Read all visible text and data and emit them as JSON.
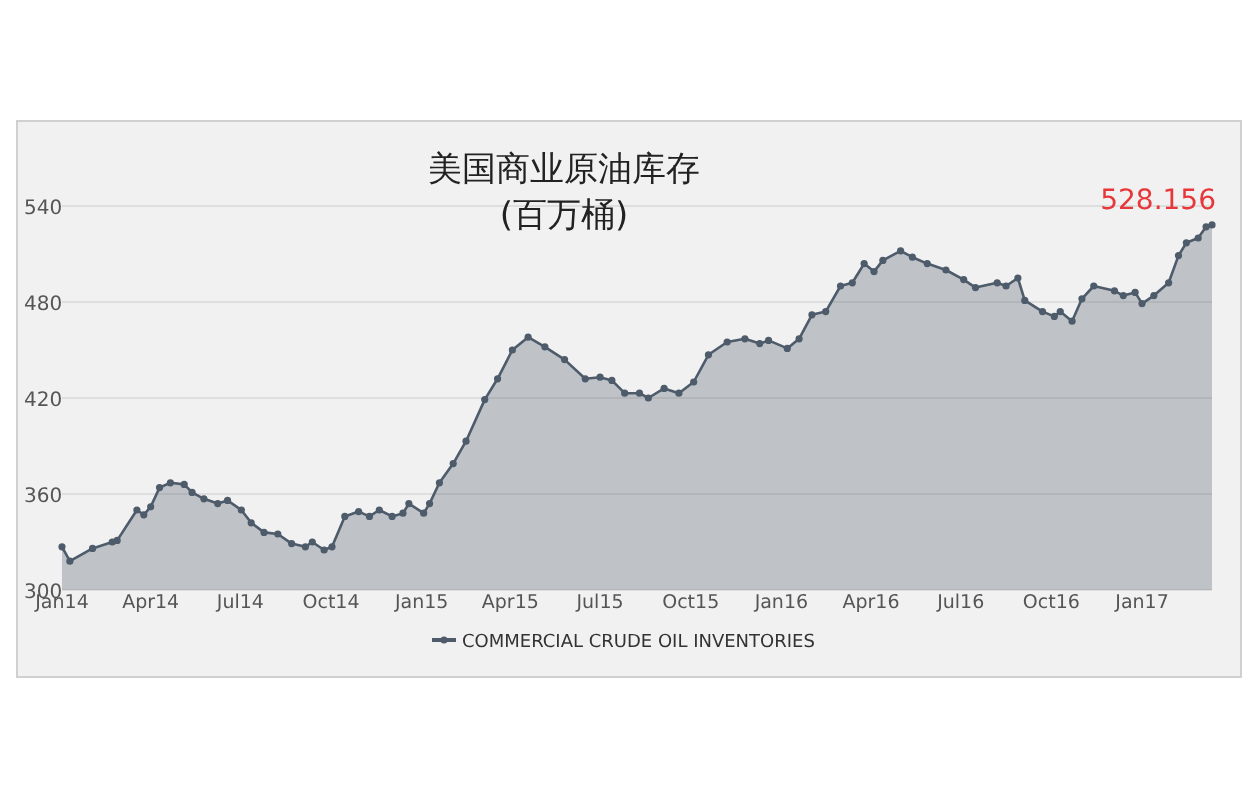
{
  "chart_data": {
    "type": "area",
    "title": "美国商业原油库存",
    "subtitle": "(百万桶)",
    "x": [
      "2014-01-01",
      "2014-01-09",
      "2014-02-01",
      "2014-02-21",
      "2014-02-26",
      "2014-03-18",
      "2014-03-25",
      "2014-04-01",
      "2014-04-10",
      "2014-04-21",
      "2014-05-05",
      "2014-05-13",
      "2014-05-25",
      "2014-06-08",
      "2014-06-18",
      "2014-07-02",
      "2014-07-12",
      "2014-07-25",
      "2014-08-08",
      "2014-08-22",
      "2014-09-05",
      "2014-09-12",
      "2014-09-24",
      "2014-10-02",
      "2014-10-15",
      "2014-10-29",
      "2014-11-09",
      "2014-11-19",
      "2014-12-02",
      "2014-12-13",
      "2014-12-19",
      "2015-01-03",
      "2015-01-09",
      "2015-01-19",
      "2015-02-02",
      "2015-02-15",
      "2015-03-06",
      "2015-03-19",
      "2015-04-03",
      "2015-04-19",
      "2015-05-06",
      "2015-05-26",
      "2015-06-16",
      "2015-07-01",
      "2015-07-13",
      "2015-07-26",
      "2015-08-10",
      "2015-08-19",
      "2015-09-04",
      "2015-09-19",
      "2015-10-04",
      "2015-10-19",
      "2015-11-07",
      "2015-11-25",
      "2015-12-10",
      "2015-12-19",
      "2016-01-07",
      "2016-01-19",
      "2016-02-01",
      "2016-02-15",
      "2016-03-01",
      "2016-03-13",
      "2016-03-25",
      "2016-04-04",
      "2016-04-13",
      "2016-05-01",
      "2016-05-13",
      "2016-05-28",
      "2016-06-16",
      "2016-07-04",
      "2016-07-16",
      "2016-08-07",
      "2016-08-16",
      "2016-08-28",
      "2016-09-04",
      "2016-09-22",
      "2016-10-04",
      "2016-10-10",
      "2016-10-22",
      "2016-11-01",
      "2016-11-13",
      "2016-12-04",
      "2016-12-13",
      "2016-12-25",
      "2017-01-01",
      "2017-01-13",
      "2017-01-28",
      "2017-02-07",
      "2017-02-15",
      "2017-02-27",
      "2017-03-07",
      "2017-03-13"
    ],
    "series": [
      {
        "name": "COMMERCIAL CRUDE OIL INVENTORIES",
        "color": "#4d5b6a",
        "values": [
          327,
          318,
          326,
          330,
          331,
          350,
          347,
          352,
          364,
          367,
          366,
          361,
          357,
          354,
          356,
          350,
          342,
          336,
          335,
          329,
          327,
          330,
          325,
          327,
          346,
          349,
          346,
          350,
          346,
          348,
          354,
          348,
          354,
          367,
          379,
          393,
          419,
          432,
          450,
          458,
          452,
          444,
          432,
          433,
          431,
          423,
          423,
          420,
          426,
          423,
          430,
          447,
          455,
          457,
          454,
          456,
          451,
          457,
          472,
          474,
          490,
          492,
          504,
          499,
          506,
          512,
          508,
          504,
          500,
          494,
          489,
          492,
          490,
          495,
          481,
          474,
          471,
          474,
          468,
          482,
          490,
          487,
          484,
          486,
          479,
          484,
          492,
          509,
          517,
          520,
          527,
          528.156
        ],
        "value_labels": [
          null,
          null,
          null,
          null,
          null,
          null,
          null,
          null,
          null,
          null,
          null,
          null,
          null,
          null,
          null,
          null,
          null,
          null,
          null,
          null,
          null,
          null,
          null,
          null,
          null,
          null,
          null,
          null,
          null,
          null,
          null,
          null,
          null,
          null,
          null,
          null,
          null,
          null,
          null,
          null,
          null,
          null,
          null,
          null,
          null,
          null,
          null,
          null,
          null,
          null,
          null,
          null,
          null,
          null,
          null,
          null,
          null,
          null,
          null,
          null,
          null,
          null,
          null,
          null,
          null,
          null,
          null,
          null,
          null,
          null,
          null,
          null,
          null,
          null,
          null,
          null,
          null,
          null,
          null,
          null,
          null,
          null,
          null,
          null,
          null,
          null,
          null,
          null,
          null,
          null,
          null,
          "528.156"
        ]
      }
    ],
    "xlim": [
      "2014-01-01",
      "2017-03-13"
    ],
    "xticks": [
      {
        "value": "2014-01-01",
        "label": "Jan14"
      },
      {
        "value": "2014-04-01",
        "label": "Apr14"
      },
      {
        "value": "2014-07-01",
        "label": "Jul14"
      },
      {
        "value": "2014-10-01",
        "label": "Oct14"
      },
      {
        "value": "2015-01-01",
        "label": "Jan15"
      },
      {
        "value": "2015-04-01",
        "label": "Apr15"
      },
      {
        "value": "2015-07-01",
        "label": "Jul15"
      },
      {
        "value": "2015-10-01",
        "label": "Oct15"
      },
      {
        "value": "2016-01-01",
        "label": "Jan16"
      },
      {
        "value": "2016-04-01",
        "label": "Apr16"
      },
      {
        "value": "2016-07-01",
        "label": "Jul16"
      },
      {
        "value": "2016-10-01",
        "label": "Oct16"
      },
      {
        "value": "2017-01-01",
        "label": "Jan17"
      }
    ],
    "ylim": [
      300,
      540
    ],
    "yticks": [
      300,
      360,
      420,
      480,
      540
    ],
    "grid": "y",
    "legend": "bottom",
    "marker": "circle",
    "line_style": "solid"
  }
}
